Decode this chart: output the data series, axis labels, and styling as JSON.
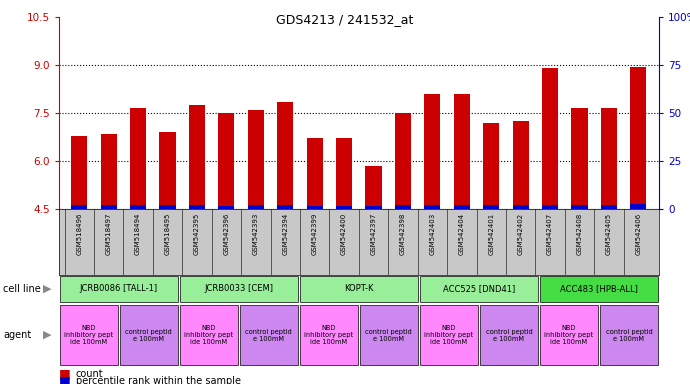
{
  "title": "GDS4213 / 241532_at",
  "samples": [
    "GSM518496",
    "GSM518497",
    "GSM518494",
    "GSM518495",
    "GSM542395",
    "GSM542396",
    "GSM542393",
    "GSM542394",
    "GSM542399",
    "GSM542400",
    "GSM542397",
    "GSM542398",
    "GSM542403",
    "GSM542404",
    "GSM542401",
    "GSM542402",
    "GSM542407",
    "GSM542408",
    "GSM542405",
    "GSM542406"
  ],
  "red_values": [
    6.8,
    6.85,
    7.65,
    6.9,
    7.75,
    7.5,
    7.6,
    7.85,
    6.72,
    6.72,
    5.85,
    7.5,
    8.1,
    8.1,
    7.2,
    7.25,
    8.9,
    7.65,
    7.65,
    8.95
  ],
  "blue_heights": [
    0.12,
    0.12,
    0.12,
    0.14,
    0.14,
    0.1,
    0.14,
    0.14,
    0.1,
    0.1,
    0.1,
    0.12,
    0.12,
    0.12,
    0.12,
    0.12,
    0.12,
    0.12,
    0.12,
    0.16
  ],
  "ymin": 4.5,
  "ymax": 10.5,
  "y_ticks_left": [
    4.5,
    6.0,
    7.5,
    9.0,
    10.5
  ],
  "y_ticks_right": [
    0,
    25,
    50,
    75,
    100
  ],
  "cell_line_groups": [
    {
      "label": "JCRB0086 [TALL-1]",
      "start": 0,
      "end": 4,
      "color": "#99EE99"
    },
    {
      "label": "JCRB0033 [CEM]",
      "start": 4,
      "end": 8,
      "color": "#99EE99"
    },
    {
      "label": "KOPT-K",
      "start": 8,
      "end": 12,
      "color": "#99EE99"
    },
    {
      "label": "ACC525 [DND41]",
      "start": 12,
      "end": 16,
      "color": "#99EE99"
    },
    {
      "label": "ACC483 [HPB-ALL]",
      "start": 16,
      "end": 20,
      "color": "#44DD44"
    }
  ],
  "agent_groups": [
    {
      "label": "NBD\ninhibitory pept\nide 100mM",
      "start": 0,
      "end": 2
    },
    {
      "label": "control peptid\ne 100mM",
      "start": 2,
      "end": 4
    },
    {
      "label": "NBD\ninhibitory pept\nide 100mM",
      "start": 4,
      "end": 6
    },
    {
      "label": "control peptid\ne 100mM",
      "start": 6,
      "end": 8
    },
    {
      "label": "NBD\ninhibitory pept\nide 100mM",
      "start": 8,
      "end": 10
    },
    {
      "label": "control peptid\ne 100mM",
      "start": 10,
      "end": 12
    },
    {
      "label": "NBD\ninhibitory pept\nide 100mM",
      "start": 12,
      "end": 14
    },
    {
      "label": "control peptid\ne 100mM",
      "start": 14,
      "end": 16
    },
    {
      "label": "NBD\ninhibitory pept\nide 100mM",
      "start": 16,
      "end": 18
    },
    {
      "label": "control peptid\ne 100mM",
      "start": 18,
      "end": 20
    }
  ],
  "agent_colors": [
    "#FF88FF",
    "#CC88EE",
    "#FF88FF",
    "#CC88EE",
    "#FF88FF",
    "#CC88EE",
    "#FF88FF",
    "#CC88EE",
    "#FF88FF",
    "#CC88EE"
  ],
  "bar_color_red": "#CC0000",
  "bar_color_blue": "#0000CC",
  "sample_bg_color": "#C8C8C8",
  "legend_items": [
    "count",
    "percentile rank within the sample"
  ]
}
